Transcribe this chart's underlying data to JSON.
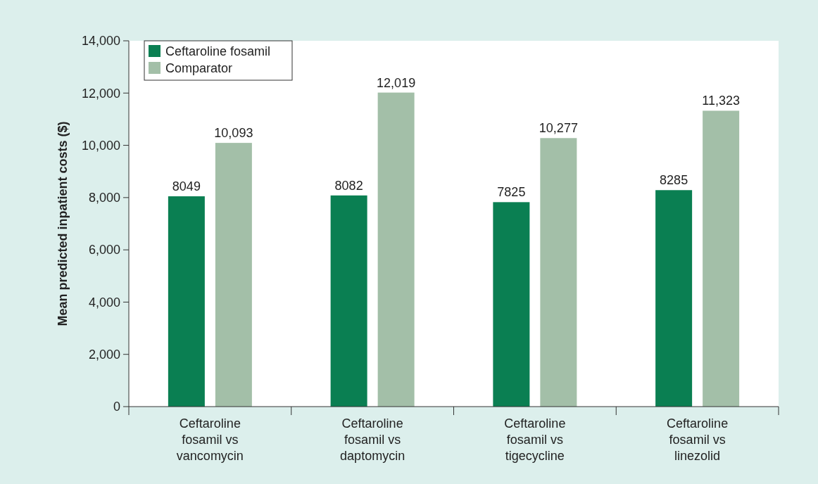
{
  "chart_data": {
    "type": "bar",
    "ylabel": "Mean predicted inpatient costs ($)",
    "categories": [
      "Ceftaroline fosamil vs vancomycin",
      "Ceftaroline fosamil vs daptomycin",
      "Ceftaroline fosamil vs tigecycline",
      "Ceftaroline fosamil vs linezolid"
    ],
    "series": [
      {
        "name": "Ceftaroline fosamil",
        "color": "#0a7f52",
        "values": [
          8049,
          8082,
          7825,
          8285
        ],
        "value_labels": [
          "8049",
          "8082",
          "7825",
          "8285"
        ]
      },
      {
        "name": "Comparator",
        "color": "#a3bfa8",
        "values": [
          10093,
          12019,
          10277,
          11323
        ],
        "value_labels": [
          "10,093",
          "12,019",
          "10,277",
          "11,323"
        ]
      }
    ],
    "ylim": [
      0,
      14000
    ],
    "yticks": [
      {
        "value": 0,
        "label": "0"
      },
      {
        "value": 2000,
        "label": "2,000"
      },
      {
        "value": 4000,
        "label": "4,000"
      },
      {
        "value": 6000,
        "label": "6,000"
      },
      {
        "value": 8000,
        "label": "8,000"
      },
      {
        "value": 10000,
        "label": "10,000"
      },
      {
        "value": 12000,
        "label": "12,000"
      },
      {
        "value": 14000,
        "label": "14,000"
      }
    ],
    "grid": false,
    "legend": "top left"
  }
}
